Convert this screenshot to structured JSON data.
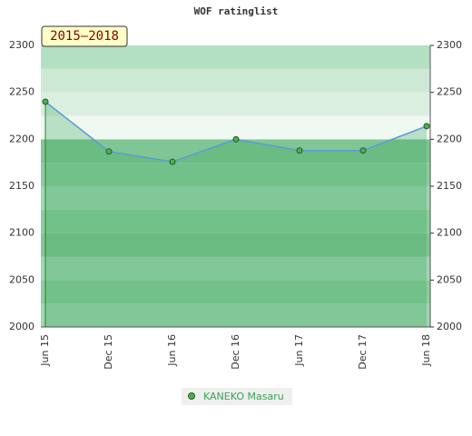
{
  "chart_data": {
    "type": "line",
    "title": "WOF ratinglist",
    "badge": "2015–2018",
    "categories": [
      "Jun 15",
      "Dec 15",
      "Jun 16",
      "Dec 16",
      "Jun 17",
      "Dec 17",
      "Jun 18"
    ],
    "series": [
      {
        "name": "KANEKO Masaru",
        "color": "#5b9bd5",
        "values": [
          2240,
          2187,
          2176,
          2200,
          2188,
          2188,
          2214
        ]
      }
    ],
    "ylim": [
      2000,
      2300
    ],
    "yticks": [
      2000,
      2050,
      2100,
      2150,
      2200,
      2250,
      2300
    ],
    "grid": true
  }
}
